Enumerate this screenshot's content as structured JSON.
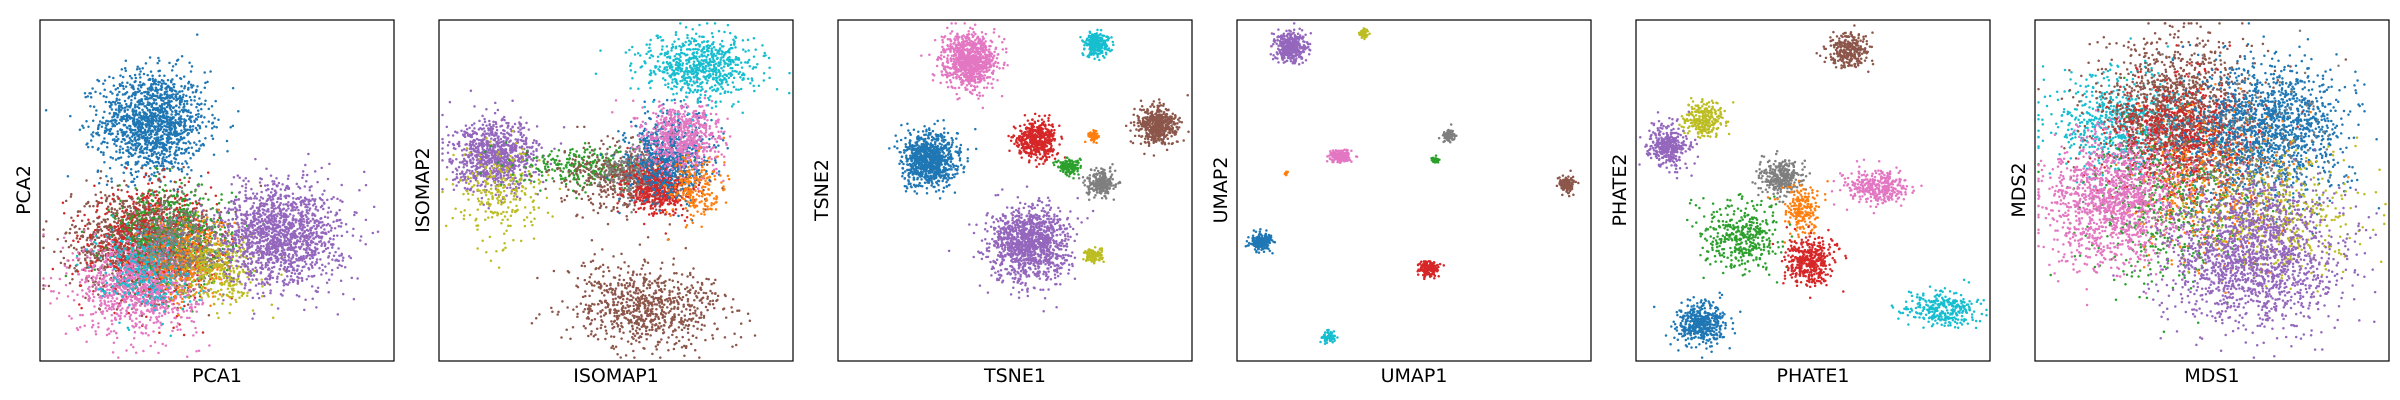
{
  "palette": [
    "#1f77b4",
    "#ff7f0e",
    "#2ca02c",
    "#d62728",
    "#9467bd",
    "#8c564b",
    "#e377c2",
    "#7f7f7f",
    "#bcbd22",
    "#17becf"
  ],
  "chart_data": [
    {
      "type": "scatter",
      "xlabel": "PCA1",
      "ylabel": "PCA2",
      "xlim": [
        0,
        10
      ],
      "ylim": [
        0,
        10
      ],
      "grid": false,
      "ticks": false,
      "clusters": [
        {
          "color_index": 0,
          "center": [
            3.2,
            7.0
          ],
          "spread": [
            0.75,
            0.75
          ],
          "count": 1400
        },
        {
          "color_index": 5,
          "center": [
            2.8,
            3.5
          ],
          "spread": [
            0.95,
            0.75
          ],
          "count": 1300
        },
        {
          "color_index": 3,
          "center": [
            3.2,
            3.4
          ],
          "spread": [
            0.85,
            0.75
          ],
          "count": 900
        },
        {
          "color_index": 2,
          "center": [
            3.8,
            3.6
          ],
          "spread": [
            0.85,
            0.75
          ],
          "count": 600
        },
        {
          "color_index": 6,
          "center": [
            2.8,
            2.2
          ],
          "spread": [
            0.85,
            0.7
          ],
          "count": 1000
        },
        {
          "color_index": 9,
          "center": [
            3.0,
            2.8
          ],
          "spread": [
            0.7,
            0.6
          ],
          "count": 350
        },
        {
          "color_index": 1,
          "center": [
            4.2,
            3.0
          ],
          "spread": [
            0.6,
            0.6
          ],
          "count": 350
        },
        {
          "color_index": 7,
          "center": [
            4.0,
            3.4
          ],
          "spread": [
            0.6,
            0.6
          ],
          "count": 350
        },
        {
          "color_index": 8,
          "center": [
            5.1,
            2.7
          ],
          "spread": [
            0.55,
            0.5
          ],
          "count": 350
        },
        {
          "color_index": 4,
          "center": [
            6.8,
            3.7
          ],
          "spread": [
            0.85,
            0.75
          ],
          "count": 1500
        }
      ]
    },
    {
      "type": "scatter",
      "xlabel": "ISOMAP1",
      "ylabel": "ISOMAP2",
      "xlim": [
        0,
        10
      ],
      "ylim": [
        0,
        10
      ],
      "grid": false,
      "ticks": false,
      "clusters": [
        {
          "color_index": 4,
          "center": [
            1.6,
            6.0
          ],
          "spread": [
            0.6,
            0.5
          ],
          "count": 900
        },
        {
          "color_index": 8,
          "center": [
            1.7,
            4.9
          ],
          "spread": [
            0.6,
            0.7
          ],
          "count": 250
        },
        {
          "color_index": 2,
          "center": [
            4.3,
            5.7
          ],
          "spread": [
            1.0,
            0.3
          ],
          "count": 300
        },
        {
          "color_index": 5,
          "center": [
            5.3,
            5.4
          ],
          "spread": [
            0.9,
            0.5
          ],
          "count": 500
        },
        {
          "color_index": 7,
          "center": [
            5.6,
            5.5
          ],
          "spread": [
            0.5,
            0.4
          ],
          "count": 250
        },
        {
          "color_index": 3,
          "center": [
            6.2,
            5.1
          ],
          "spread": [
            0.45,
            0.4
          ],
          "count": 500
        },
        {
          "color_index": 0,
          "center": [
            6.5,
            6.0
          ],
          "spread": [
            0.55,
            0.6
          ],
          "count": 700
        },
        {
          "color_index": 6,
          "center": [
            6.9,
            6.6
          ],
          "spread": [
            0.55,
            0.5
          ],
          "count": 600
        },
        {
          "color_index": 1,
          "center": [
            7.2,
            5.0
          ],
          "spread": [
            0.4,
            0.5
          ],
          "count": 200
        },
        {
          "color_index": 9,
          "center": [
            7.4,
            8.6
          ],
          "spread": [
            0.8,
            0.5
          ],
          "count": 700
        },
        {
          "color_index": 5,
          "center": [
            5.9,
            1.6
          ],
          "spread": [
            1.1,
            0.6
          ],
          "count": 800
        }
      ]
    },
    {
      "type": "scatter",
      "xlabel": "TSNE1",
      "ylabel": "TSNE2",
      "xlim": [
        0,
        10
      ],
      "ylim": [
        0,
        10
      ],
      "grid": false,
      "ticks": false,
      "clusters": [
        {
          "color_index": 6,
          "center": [
            3.7,
            8.8
          ],
          "spread": [
            0.38,
            0.38
          ],
          "count": 900
        },
        {
          "color_index": 9,
          "center": [
            7.3,
            9.3
          ],
          "spread": [
            0.18,
            0.18
          ],
          "count": 250
        },
        {
          "color_index": 0,
          "center": [
            2.6,
            5.9
          ],
          "spread": [
            0.38,
            0.38
          ],
          "count": 900
        },
        {
          "color_index": 3,
          "center": [
            5.6,
            6.5
          ],
          "spread": [
            0.28,
            0.28
          ],
          "count": 500
        },
        {
          "color_index": 5,
          "center": [
            9.0,
            6.9
          ],
          "spread": [
            0.28,
            0.28
          ],
          "count": 500
        },
        {
          "color_index": 1,
          "center": [
            7.2,
            6.6
          ],
          "spread": [
            0.08,
            0.08
          ],
          "count": 60
        },
        {
          "color_index": 2,
          "center": [
            6.5,
            5.7
          ],
          "spread": [
            0.15,
            0.12
          ],
          "count": 150
        },
        {
          "color_index": 7,
          "center": [
            7.4,
            5.2
          ],
          "spread": [
            0.2,
            0.2
          ],
          "count": 250
        },
        {
          "color_index": 4,
          "center": [
            5.4,
            3.4
          ],
          "spread": [
            0.55,
            0.55
          ],
          "count": 1200
        },
        {
          "color_index": 8,
          "center": [
            7.2,
            3.1
          ],
          "spread": [
            0.12,
            0.1
          ],
          "count": 120
        }
      ]
    },
    {
      "type": "scatter",
      "xlabel": "UMAP1",
      "ylabel": "UMAP2",
      "xlim": [
        0,
        10
      ],
      "ylim": [
        0,
        10
      ],
      "grid": false,
      "ticks": false,
      "clusters": [
        {
          "color_index": 4,
          "center": [
            1.5,
            9.2
          ],
          "spread": [
            0.22,
            0.22
          ],
          "count": 400
        },
        {
          "color_index": 8,
          "center": [
            3.6,
            9.6
          ],
          "spread": [
            0.06,
            0.06
          ],
          "count": 50
        },
        {
          "color_index": 7,
          "center": [
            6.0,
            6.6
          ],
          "spread": [
            0.09,
            0.09
          ],
          "count": 80
        },
        {
          "color_index": 6,
          "center": [
            2.9,
            6.0
          ],
          "spread": [
            0.16,
            0.1
          ],
          "count": 150
        },
        {
          "color_index": 2,
          "center": [
            5.6,
            5.9
          ],
          "spread": [
            0.05,
            0.05
          ],
          "count": 40
        },
        {
          "color_index": 1,
          "center": [
            1.4,
            5.5
          ],
          "spread": [
            0.03,
            0.03
          ],
          "count": 10
        },
        {
          "color_index": 5,
          "center": [
            9.3,
            5.2
          ],
          "spread": [
            0.12,
            0.12
          ],
          "count": 120
        },
        {
          "color_index": 0,
          "center": [
            0.7,
            3.5
          ],
          "spread": [
            0.15,
            0.12
          ],
          "count": 200
        },
        {
          "color_index": 3,
          "center": [
            5.4,
            2.7
          ],
          "spread": [
            0.12,
            0.12
          ],
          "count": 150
        },
        {
          "color_index": 9,
          "center": [
            2.6,
            0.7
          ],
          "spread": [
            0.08,
            0.08
          ],
          "count": 80
        }
      ]
    },
    {
      "type": "scatter",
      "xlabel": "PHATE1",
      "ylabel": "PHATE2",
      "xlim": [
        0,
        10
      ],
      "ylim": [
        0,
        10
      ],
      "grid": false,
      "ticks": false,
      "clusters": [
        {
          "color_index": 5,
          "center": [
            6.0,
            9.1
          ],
          "spread": [
            0.3,
            0.25
          ],
          "count": 300
        },
        {
          "color_index": 8,
          "center": [
            1.9,
            7.1
          ],
          "spread": [
            0.3,
            0.25
          ],
          "count": 250
        },
        {
          "color_index": 4,
          "center": [
            0.9,
            6.3
          ],
          "spread": [
            0.3,
            0.3
          ],
          "count": 350
        },
        {
          "color_index": 7,
          "center": [
            4.1,
            5.4
          ],
          "spread": [
            0.3,
            0.25
          ],
          "count": 300
        },
        {
          "color_index": 6,
          "center": [
            6.8,
            5.1
          ],
          "spread": [
            0.4,
            0.25
          ],
          "count": 350
        },
        {
          "color_index": 1,
          "center": [
            4.7,
            4.4
          ],
          "spread": [
            0.25,
            0.35
          ],
          "count": 200
        },
        {
          "color_index": 2,
          "center": [
            3.0,
            3.7
          ],
          "spread": [
            0.55,
            0.5
          ],
          "count": 400
        },
        {
          "color_index": 3,
          "center": [
            4.9,
            2.9
          ],
          "spread": [
            0.35,
            0.35
          ],
          "count": 400
        },
        {
          "color_index": 0,
          "center": [
            1.8,
            1.1
          ],
          "spread": [
            0.35,
            0.3
          ],
          "count": 450
        },
        {
          "color_index": 9,
          "center": [
            8.7,
            1.5
          ],
          "spread": [
            0.5,
            0.25
          ],
          "count": 300
        }
      ]
    },
    {
      "type": "scatter",
      "xlabel": "MDS1",
      "ylabel": "MDS2",
      "xlim": [
        0,
        10
      ],
      "ylim": [
        0,
        10
      ],
      "grid": false,
      "ticks": false,
      "clusters": [
        {
          "color_index": 9,
          "center": [
            2.5,
            7.0
          ],
          "spread": [
            1.0,
            0.8
          ],
          "count": 700
        },
        {
          "color_index": 5,
          "center": [
            4.0,
            7.3
          ],
          "spread": [
            1.1,
            1.0
          ],
          "count": 1200
        },
        {
          "color_index": 3,
          "center": [
            4.3,
            6.4
          ],
          "spread": [
            1.0,
            0.9
          ],
          "count": 800
        },
        {
          "color_index": 0,
          "center": [
            6.6,
            6.8
          ],
          "spread": [
            1.1,
            1.0
          ],
          "count": 1400
        },
        {
          "color_index": 2,
          "center": [
            3.8,
            4.5
          ],
          "spread": [
            1.2,
            1.1
          ],
          "count": 500
        },
        {
          "color_index": 1,
          "center": [
            5.0,
            5.0
          ],
          "spread": [
            1.2,
            1.1
          ],
          "count": 400
        },
        {
          "color_index": 7,
          "center": [
            5.5,
            5.5
          ],
          "spread": [
            1.3,
            1.2
          ],
          "count": 400
        },
        {
          "color_index": 8,
          "center": [
            7.0,
            4.2
          ],
          "spread": [
            1.1,
            0.9
          ],
          "count": 400
        },
        {
          "color_index": 6,
          "center": [
            2.2,
            4.7
          ],
          "spread": [
            0.9,
            0.9
          ],
          "count": 1300
        },
        {
          "color_index": 4,
          "center": [
            6.2,
            3.1
          ],
          "spread": [
            1.2,
            1.0
          ],
          "count": 1600
        }
      ]
    }
  ]
}
